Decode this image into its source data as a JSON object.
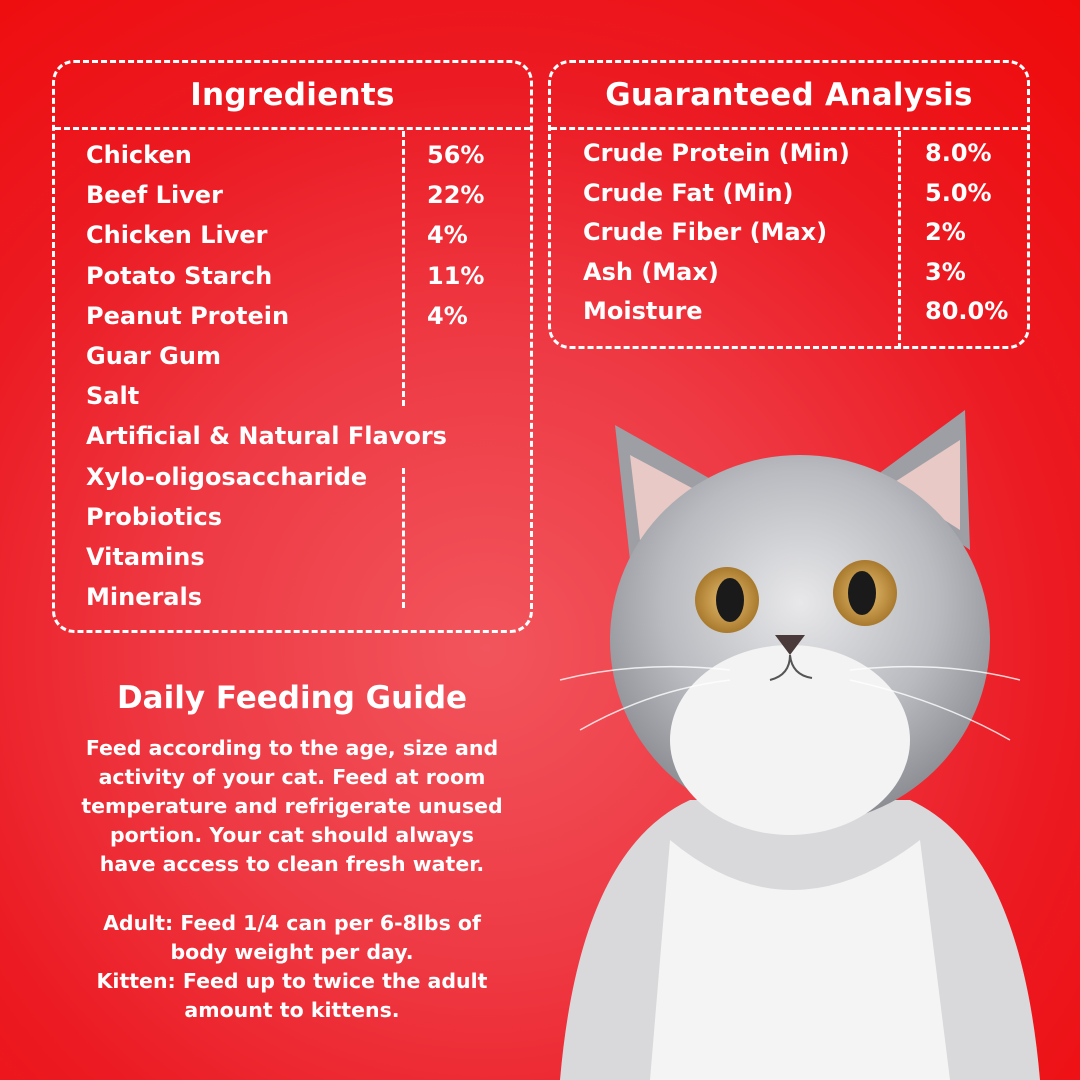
{
  "ingredients": {
    "title": "Ingredients",
    "items": [
      {
        "name": "Chicken",
        "value": "56%"
      },
      {
        "name": "Beef Liver",
        "value": "22%"
      },
      {
        "name": "Chicken Liver",
        "value": "4%"
      },
      {
        "name": "Potato Starch",
        "value": "11%"
      },
      {
        "name": "Peanut Protein",
        "value": "4%"
      },
      {
        "name": "Guar Gum"
      },
      {
        "name": "Salt"
      },
      {
        "name": "Artificial & Natural Flavors"
      },
      {
        "name": "Xylo-oligosaccharide"
      },
      {
        "name": "Probiotics"
      },
      {
        "name": "Vitamins"
      },
      {
        "name": "Minerals"
      }
    ]
  },
  "analysis": {
    "title": "Guaranteed Analysis",
    "items": [
      {
        "name": "Crude Protein (Min)",
        "value": "8.0%"
      },
      {
        "name": "Crude Fat (Min)",
        "value": "5.0%"
      },
      {
        "name": "Crude Fiber (Max)",
        "value": "2%"
      },
      {
        "name": "Ash (Max)",
        "value": "3%"
      },
      {
        "name": "Moisture",
        "value": "80.0%"
      }
    ]
  },
  "feeding": {
    "title": "Daily Feeding Guide",
    "paragraph1": [
      "Feed according to the age, size and",
      "activity of your cat. Feed at room",
      "temperature and refrigerate unused",
      "portion. Your cat should always",
      "have access to clean fresh water."
    ],
    "paragraph2": [
      "Adult: Feed 1/4 can per 6-8lbs of",
      "body weight per day.",
      "Kitten: Feed up to twice the adult",
      "amount to kittens."
    ]
  },
  "colors": {
    "background": "#ef1a20",
    "text": "#ffffff"
  }
}
